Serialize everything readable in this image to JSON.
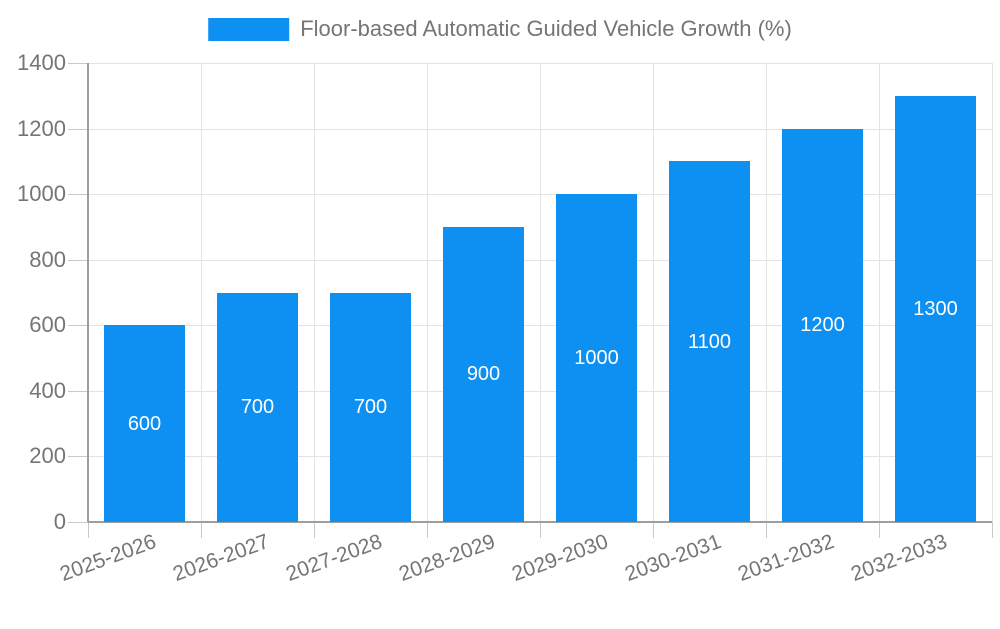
{
  "chart_data": {
    "type": "bar",
    "title": "",
    "legend": {
      "label": "Floor-based Automatic Guided Vehicle Growth (%)",
      "position": "top-center"
    },
    "categories": [
      "2025-2026",
      "2026-2027",
      "2027-2028",
      "2028-2029",
      "2029-2030",
      "2030-2031",
      "2031-2032",
      "2032-2033"
    ],
    "values": [
      600,
      700,
      700,
      900,
      1000,
      1100,
      1200,
      1300
    ],
    "xlabel": "",
    "ylabel": "",
    "ylim": [
      0,
      1400
    ],
    "yticks": [
      0,
      200,
      400,
      600,
      800,
      1000,
      1200,
      1400
    ],
    "xtick_label_rotation_deg": -20,
    "grid": {
      "horizontal": true,
      "vertical": true
    },
    "bar_labels_inside": true,
    "colors": {
      "bar": "#0d90f2",
      "bar_label_text": "#ffffff",
      "grid_line": "#e3e3e3",
      "axis_line": "#9e9e9e",
      "tick_mark": "#c9c9c9",
      "axis_text": "#757575",
      "legend_text": "#757575",
      "background": "#ffffff"
    }
  }
}
